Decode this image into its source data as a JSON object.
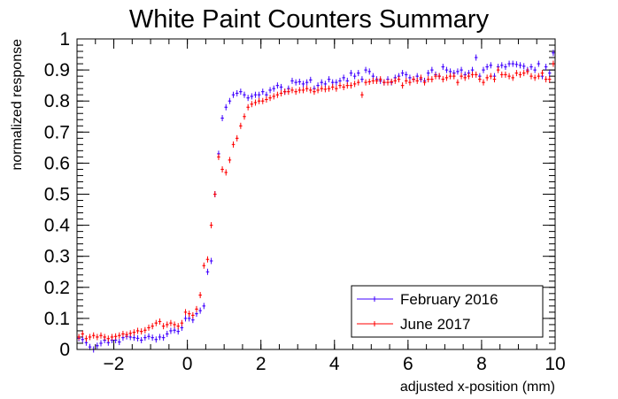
{
  "chart_data": {
    "type": "scatter",
    "title": "White Paint Counters Summary",
    "xlabel": "adjusted x-position (mm)",
    "ylabel": "normalized response",
    "xlim": [
      -3,
      10
    ],
    "ylim": [
      0,
      1
    ],
    "x_ticks": [
      -2,
      0,
      2,
      4,
      6,
      8,
      10
    ],
    "y_ticks": [
      0,
      0.1,
      0.2,
      0.3,
      0.4,
      0.5,
      0.6,
      0.7,
      0.8,
      0.9,
      1
    ],
    "x_tick_labels": [
      "−2",
      "0",
      "2",
      "4",
      "6",
      "8",
      "10"
    ],
    "y_tick_labels": [
      "0",
      "0.1",
      "0.2",
      "0.3",
      "0.4",
      "0.5",
      "0.6",
      "0.7",
      "0.8",
      "0.9",
      "1"
    ],
    "grid": false,
    "legend_position": "bottom-right",
    "series": [
      {
        "name": "February 2016",
        "color": "#3f00ff",
        "points": [
          [
            -2.95,
            0.036
          ],
          [
            -2.85,
            0.032
          ],
          [
            -2.75,
            0.022
          ],
          [
            -2.65,
            0.008
          ],
          [
            -2.55,
            0.0
          ],
          [
            -2.45,
            0.012
          ],
          [
            -2.35,
            0.02
          ],
          [
            -2.25,
            0.03
          ],
          [
            -2.15,
            0.022
          ],
          [
            -2.05,
            0.03
          ],
          [
            -1.95,
            0.03
          ],
          [
            -1.85,
            0.024
          ],
          [
            -1.75,
            0.038
          ],
          [
            -1.65,
            0.042
          ],
          [
            -1.55,
            0.04
          ],
          [
            -1.45,
            0.038
          ],
          [
            -1.35,
            0.036
          ],
          [
            -1.25,
            0.03
          ],
          [
            -1.15,
            0.038
          ],
          [
            -1.05,
            0.042
          ],
          [
            -0.95,
            0.038
          ],
          [
            -0.85,
            0.032
          ],
          [
            -0.75,
            0.04
          ],
          [
            -0.65,
            0.038
          ],
          [
            -0.55,
            0.05
          ],
          [
            -0.45,
            0.06
          ],
          [
            -0.35,
            0.062
          ],
          [
            -0.25,
            0.058
          ],
          [
            -0.15,
            0.07
          ],
          [
            -0.05,
            0.1
          ],
          [
            0.05,
            0.1
          ],
          [
            0.15,
            0.095
          ],
          [
            0.25,
            0.115
          ],
          [
            0.35,
            0.125
          ],
          [
            0.45,
            0.14
          ],
          [
            0.55,
            0.25
          ],
          [
            0.65,
            0.285
          ],
          [
            0.75,
            0.5
          ],
          [
            0.85,
            0.63
          ],
          [
            0.95,
            0.745
          ],
          [
            1.05,
            0.78
          ],
          [
            1.15,
            0.8
          ],
          [
            1.25,
            0.82
          ],
          [
            1.35,
            0.825
          ],
          [
            1.45,
            0.83
          ],
          [
            1.55,
            0.82
          ],
          [
            1.65,
            0.81
          ],
          [
            1.75,
            0.815
          ],
          [
            1.85,
            0.82
          ],
          [
            1.95,
            0.82
          ],
          [
            2.05,
            0.83
          ],
          [
            2.15,
            0.82
          ],
          [
            2.25,
            0.835
          ],
          [
            2.35,
            0.84
          ],
          [
            2.45,
            0.85
          ],
          [
            2.55,
            0.845
          ],
          [
            2.65,
            0.83
          ],
          [
            2.75,
            0.84
          ],
          [
            2.85,
            0.865
          ],
          [
            2.95,
            0.86
          ],
          [
            3.05,
            0.862
          ],
          [
            3.15,
            0.855
          ],
          [
            3.25,
            0.86
          ],
          [
            3.35,
            0.868
          ],
          [
            3.45,
            0.84
          ],
          [
            3.55,
            0.85
          ],
          [
            3.65,
            0.86
          ],
          [
            3.75,
            0.855
          ],
          [
            3.85,
            0.87
          ],
          [
            3.95,
            0.86
          ],
          [
            4.05,
            0.86
          ],
          [
            4.15,
            0.865
          ],
          [
            4.25,
            0.875
          ],
          [
            4.35,
            0.865
          ],
          [
            4.45,
            0.89
          ],
          [
            4.55,
            0.88
          ],
          [
            4.65,
            0.89
          ],
          [
            4.75,
            0.87
          ],
          [
            4.85,
            0.9
          ],
          [
            4.95,
            0.895
          ],
          [
            5.05,
            0.88
          ],
          [
            5.15,
            0.87
          ],
          [
            5.25,
            0.865
          ],
          [
            5.35,
            0.86
          ],
          [
            5.45,
            0.87
          ],
          [
            5.55,
            0.86
          ],
          [
            5.65,
            0.875
          ],
          [
            5.75,
            0.88
          ],
          [
            5.85,
            0.89
          ],
          [
            5.95,
            0.885
          ],
          [
            6.05,
            0.875
          ],
          [
            6.15,
            0.87
          ],
          [
            6.25,
            0.88
          ],
          [
            6.35,
            0.87
          ],
          [
            6.45,
            0.865
          ],
          [
            6.55,
            0.89
          ],
          [
            6.65,
            0.9
          ],
          [
            6.75,
            0.885
          ],
          [
            6.85,
            0.88
          ],
          [
            6.95,
            0.91
          ],
          [
            7.05,
            0.9
          ],
          [
            7.15,
            0.895
          ],
          [
            7.25,
            0.89
          ],
          [
            7.35,
            0.895
          ],
          [
            7.45,
            0.9
          ],
          [
            7.55,
            0.885
          ],
          [
            7.65,
            0.89
          ],
          [
            7.75,
            0.9
          ],
          [
            7.85,
            0.94
          ],
          [
            7.95,
            0.88
          ],
          [
            8.05,
            0.9
          ],
          [
            8.15,
            0.91
          ],
          [
            8.25,
            0.915
          ],
          [
            8.35,
            0.88
          ],
          [
            8.45,
            0.91
          ],
          [
            8.55,
            0.915
          ],
          [
            8.65,
            0.91
          ],
          [
            8.75,
            0.92
          ],
          [
            8.85,
            0.92
          ],
          [
            8.95,
            0.918
          ],
          [
            9.05,
            0.915
          ],
          [
            9.15,
            0.912
          ],
          [
            9.25,
            0.9
          ],
          [
            9.35,
            0.91
          ],
          [
            9.45,
            0.9
          ],
          [
            9.55,
            0.92
          ],
          [
            9.65,
            0.88
          ],
          [
            9.75,
            0.91
          ],
          [
            9.85,
            0.89
          ],
          [
            9.95,
            0.955
          ]
        ]
      },
      {
        "name": "June 2017",
        "color": "#ff0000",
        "points": [
          [
            -2.95,
            0.04
          ],
          [
            -2.85,
            0.05
          ],
          [
            -2.75,
            0.035
          ],
          [
            -2.65,
            0.04
          ],
          [
            -2.55,
            0.045
          ],
          [
            -2.45,
            0.04
          ],
          [
            -2.35,
            0.045
          ],
          [
            -2.25,
            0.04
          ],
          [
            -2.15,
            0.035
          ],
          [
            -2.05,
            0.04
          ],
          [
            -1.95,
            0.042
          ],
          [
            -1.85,
            0.045
          ],
          [
            -1.75,
            0.05
          ],
          [
            -1.65,
            0.048
          ],
          [
            -1.55,
            0.052
          ],
          [
            -1.45,
            0.055
          ],
          [
            -1.35,
            0.06
          ],
          [
            -1.25,
            0.058
          ],
          [
            -1.15,
            0.062
          ],
          [
            -1.05,
            0.07
          ],
          [
            -0.95,
            0.075
          ],
          [
            -0.85,
            0.085
          ],
          [
            -0.75,
            0.09
          ],
          [
            -0.65,
            0.075
          ],
          [
            -0.55,
            0.08
          ],
          [
            -0.45,
            0.085
          ],
          [
            -0.35,
            0.08
          ],
          [
            -0.25,
            0.075
          ],
          [
            -0.15,
            0.085
          ],
          [
            -0.05,
            0.12
          ],
          [
            0.05,
            0.115
          ],
          [
            0.15,
            0.11
          ],
          [
            0.25,
            0.13
          ],
          [
            0.35,
            0.175
          ],
          [
            0.45,
            0.27
          ],
          [
            0.55,
            0.29
          ],
          [
            0.65,
            0.4
          ],
          [
            0.75,
            0.5
          ],
          [
            0.85,
            0.62
          ],
          [
            0.95,
            0.58
          ],
          [
            1.05,
            0.57
          ],
          [
            1.15,
            0.61
          ],
          [
            1.25,
            0.66
          ],
          [
            1.35,
            0.68
          ],
          [
            1.45,
            0.72
          ],
          [
            1.55,
            0.75
          ],
          [
            1.65,
            0.78
          ],
          [
            1.75,
            0.79
          ],
          [
            1.85,
            0.795
          ],
          [
            1.95,
            0.8
          ],
          [
            2.05,
            0.8
          ],
          [
            2.15,
            0.805
          ],
          [
            2.25,
            0.81
          ],
          [
            2.35,
            0.815
          ],
          [
            2.45,
            0.82
          ],
          [
            2.55,
            0.825
          ],
          [
            2.65,
            0.83
          ],
          [
            2.75,
            0.83
          ],
          [
            2.85,
            0.835
          ],
          [
            2.95,
            0.83
          ],
          [
            3.05,
            0.835
          ],
          [
            3.15,
            0.835
          ],
          [
            3.25,
            0.84
          ],
          [
            3.35,
            0.835
          ],
          [
            3.45,
            0.83
          ],
          [
            3.55,
            0.835
          ],
          [
            3.65,
            0.84
          ],
          [
            3.75,
            0.838
          ],
          [
            3.85,
            0.84
          ],
          [
            3.95,
            0.845
          ],
          [
            4.05,
            0.84
          ],
          [
            4.15,
            0.85
          ],
          [
            4.25,
            0.845
          ],
          [
            4.35,
            0.85
          ],
          [
            4.45,
            0.85
          ],
          [
            4.55,
            0.855
          ],
          [
            4.65,
            0.86
          ],
          [
            4.75,
            0.82
          ],
          [
            4.85,
            0.86
          ],
          [
            4.95,
            0.862
          ],
          [
            5.05,
            0.865
          ],
          [
            5.15,
            0.865
          ],
          [
            5.25,
            0.87
          ],
          [
            5.35,
            0.86
          ],
          [
            5.45,
            0.86
          ],
          [
            5.55,
            0.862
          ],
          [
            5.65,
            0.865
          ],
          [
            5.75,
            0.87
          ],
          [
            5.85,
            0.85
          ],
          [
            5.95,
            0.865
          ],
          [
            6.05,
            0.86
          ],
          [
            6.15,
            0.87
          ],
          [
            6.25,
            0.865
          ],
          [
            6.35,
            0.875
          ],
          [
            6.45,
            0.86
          ],
          [
            6.55,
            0.87
          ],
          [
            6.65,
            0.87
          ],
          [
            6.75,
            0.88
          ],
          [
            6.85,
            0.88
          ],
          [
            6.95,
            0.87
          ],
          [
            7.05,
            0.875
          ],
          [
            7.15,
            0.88
          ],
          [
            7.25,
            0.88
          ],
          [
            7.35,
            0.86
          ],
          [
            7.45,
            0.88
          ],
          [
            7.55,
            0.875
          ],
          [
            7.65,
            0.88
          ],
          [
            7.75,
            0.885
          ],
          [
            7.85,
            0.885
          ],
          [
            7.95,
            0.87
          ],
          [
            8.05,
            0.86
          ],
          [
            8.15,
            0.875
          ],
          [
            8.25,
            0.88
          ],
          [
            8.35,
            0.87
          ],
          [
            8.45,
            0.9
          ],
          [
            8.55,
            0.885
          ],
          [
            8.65,
            0.885
          ],
          [
            8.75,
            0.88
          ],
          [
            8.85,
            0.875
          ],
          [
            8.95,
            0.89
          ],
          [
            9.05,
            0.885
          ],
          [
            9.15,
            0.89
          ],
          [
            9.25,
            0.895
          ],
          [
            9.35,
            0.88
          ],
          [
            9.45,
            0.875
          ],
          [
            9.55,
            0.88
          ],
          [
            9.65,
            0.89
          ],
          [
            9.75,
            0.87
          ],
          [
            9.85,
            0.87
          ],
          [
            9.95,
            0.92
          ]
        ]
      }
    ]
  }
}
